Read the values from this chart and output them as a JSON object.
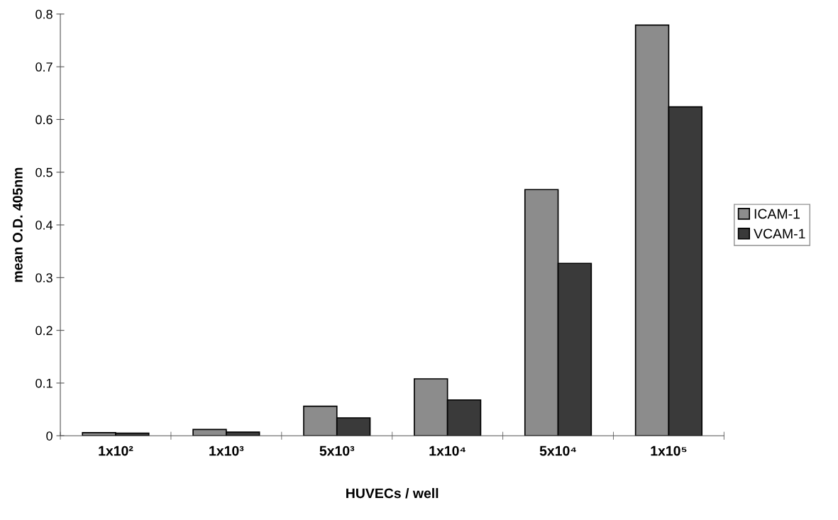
{
  "chart_data": {
    "type": "bar",
    "xlabel": "HUVECs / well",
    "ylabel": "mean O.D. 405nm",
    "categories": [
      "1x10²",
      "1x10³",
      "5x10³",
      "1x10⁴",
      "5x10⁴",
      "1x10⁵"
    ],
    "series": [
      {
        "name": "ICAM-1",
        "color": "#8c8c8c",
        "values": [
          0.006,
          0.012,
          0.056,
          0.108,
          0.467,
          0.779
        ]
      },
      {
        "name": "VCAM-1",
        "color": "#3a3a3a",
        "values": [
          0.005,
          0.007,
          0.034,
          0.068,
          0.327,
          0.624
        ]
      }
    ],
    "ylim": [
      0,
      0.8
    ],
    "yticks": [
      0,
      0.1,
      0.2,
      0.3,
      0.4,
      0.5,
      0.6,
      0.7,
      0.8
    ],
    "grid": false,
    "legend": "right"
  }
}
